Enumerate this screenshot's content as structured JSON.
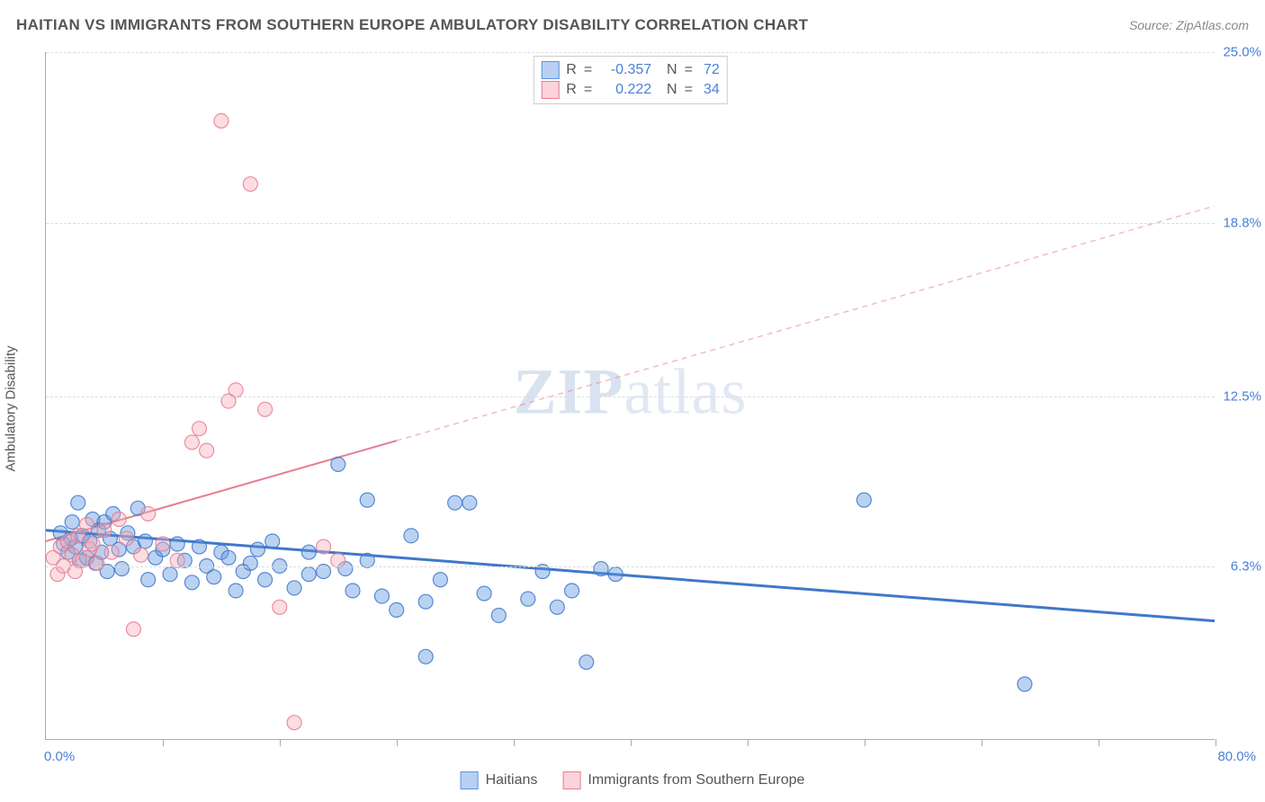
{
  "title": "HAITIAN VS IMMIGRANTS FROM SOUTHERN EUROPE AMBULATORY DISABILITY CORRELATION CHART",
  "source_prefix": "Source: ",
  "source_name": "ZipAtlas.com",
  "ylabel": "Ambulatory Disability",
  "watermark": {
    "bold": "ZIP",
    "rest": "atlas"
  },
  "chart": {
    "type": "scatter",
    "xlim": [
      0,
      80
    ],
    "ylim": [
      0,
      25
    ],
    "x_origin_label": "0.0%",
    "x_max_label": "80.0%",
    "yticks": [
      {
        "value": 6.3,
        "label": "6.3%"
      },
      {
        "value": 12.5,
        "label": "12.5%"
      },
      {
        "value": 18.8,
        "label": "18.8%"
      },
      {
        "value": 25.0,
        "label": "25.0%"
      }
    ],
    "xticks": [
      8,
      16,
      24,
      32,
      40,
      48,
      56,
      64,
      72,
      80
    ],
    "background_color": "#ffffff",
    "grid_color": "#dddddd",
    "axis_color": "#aaaaaa",
    "tick_label_color": "#4a80d8",
    "marker_radius": 8,
    "marker_fill_opacity": 0.42,
    "marker_stroke_opacity": 0.85,
    "marker_stroke_width": 1.2,
    "series": [
      {
        "name": "Haitians",
        "color": "#5b93e0",
        "stroke": "#3f78c9",
        "R": "-0.357",
        "N": "72",
        "trend": {
          "x1": 0,
          "y1": 7.6,
          "x2": 80,
          "y2": 4.3,
          "width": 3,
          "dash": "none"
        },
        "points": [
          [
            1,
            7.5
          ],
          [
            1.2,
            7.1
          ],
          [
            1.5,
            6.8
          ],
          [
            1.7,
            7.3
          ],
          [
            1.8,
            7.9
          ],
          [
            2,
            7.0
          ],
          [
            2.2,
            8.6
          ],
          [
            2.3,
            6.5
          ],
          [
            2.5,
            7.4
          ],
          [
            2.8,
            6.6
          ],
          [
            3,
            7.2
          ],
          [
            3.2,
            8.0
          ],
          [
            3.4,
            6.4
          ],
          [
            3.6,
            7.6
          ],
          [
            3.8,
            6.8
          ],
          [
            4,
            7.9
          ],
          [
            4.2,
            6.1
          ],
          [
            4.4,
            7.3
          ],
          [
            4.6,
            8.2
          ],
          [
            5,
            6.9
          ],
          [
            5.2,
            6.2
          ],
          [
            5.6,
            7.5
          ],
          [
            6,
            7.0
          ],
          [
            6.3,
            8.4
          ],
          [
            6.8,
            7.2
          ],
          [
            7,
            5.8
          ],
          [
            7.5,
            6.6
          ],
          [
            8,
            6.9
          ],
          [
            8.5,
            6.0
          ],
          [
            9,
            7.1
          ],
          [
            9.5,
            6.5
          ],
          [
            10,
            5.7
          ],
          [
            10.5,
            7.0
          ],
          [
            11,
            6.3
          ],
          [
            11.5,
            5.9
          ],
          [
            12,
            6.8
          ],
          [
            12.5,
            6.6
          ],
          [
            13,
            5.4
          ],
          [
            13.5,
            6.1
          ],
          [
            14,
            6.4
          ],
          [
            14.5,
            6.9
          ],
          [
            15,
            5.8
          ],
          [
            15.5,
            7.2
          ],
          [
            16,
            6.3
          ],
          [
            17,
            5.5
          ],
          [
            18,
            6.8
          ],
          [
            19,
            6.1
          ],
          [
            20,
            10.0
          ],
          [
            20.5,
            6.2
          ],
          [
            21,
            5.4
          ],
          [
            22,
            8.7
          ],
          [
            23,
            5.2
          ],
          [
            24,
            4.7
          ],
          [
            25,
            7.4
          ],
          [
            26,
            5.0
          ],
          [
            27,
            5.8
          ],
          [
            28,
            8.6
          ],
          [
            29,
            8.6
          ],
          [
            30,
            5.3
          ],
          [
            31,
            4.5
          ],
          [
            33,
            5.1
          ],
          [
            34,
            6.1
          ],
          [
            35,
            4.8
          ],
          [
            36,
            5.4
          ],
          [
            37,
            2.8
          ],
          [
            38,
            6.2
          ],
          [
            39,
            6.0
          ],
          [
            56,
            8.7
          ],
          [
            67,
            2.0
          ],
          [
            26,
            3.0
          ],
          [
            18,
            6.0
          ],
          [
            22,
            6.5
          ]
        ]
      },
      {
        "name": "Immigrants from Southern Europe",
        "color": "#f5aeb9",
        "stroke": "#e77d92",
        "R": "0.222",
        "N": "34",
        "trend": {
          "x1": 0,
          "y1": 7.2,
          "x2": 80,
          "y2": 19.4,
          "width": 2,
          "dash": "none",
          "dash_after_x": 24,
          "dash_pattern": "6 5"
        },
        "points": [
          [
            0.5,
            6.6
          ],
          [
            0.8,
            6.0
          ],
          [
            1,
            7.0
          ],
          [
            1.2,
            6.3
          ],
          [
            1.5,
            7.2
          ],
          [
            1.8,
            6.7
          ],
          [
            2,
            6.1
          ],
          [
            2.2,
            7.4
          ],
          [
            2.5,
            6.5
          ],
          [
            2.8,
            7.8
          ],
          [
            3,
            6.9
          ],
          [
            3.2,
            7.1
          ],
          [
            3.5,
            6.4
          ],
          [
            4,
            7.6
          ],
          [
            4.5,
            6.8
          ],
          [
            5,
            8.0
          ],
          [
            5.5,
            7.3
          ],
          [
            6,
            4.0
          ],
          [
            6.5,
            6.7
          ],
          [
            7,
            8.2
          ],
          [
            8,
            7.1
          ],
          [
            9,
            6.5
          ],
          [
            10,
            10.8
          ],
          [
            10.5,
            11.3
          ],
          [
            11,
            10.5
          ],
          [
            12,
            22.5
          ],
          [
            12.5,
            12.3
          ],
          [
            13,
            12.7
          ],
          [
            14,
            20.2
          ],
          [
            15,
            12.0
          ],
          [
            16,
            4.8
          ],
          [
            17,
            0.6
          ],
          [
            19,
            7.0
          ],
          [
            20,
            6.5
          ]
        ]
      }
    ]
  },
  "bottom_legend": [
    {
      "label": "Haitians",
      "fill": "#b7d0f2",
      "stroke": "#5b93e0"
    },
    {
      "label": "Immigrants from Southern Europe",
      "fill": "#fbd3da",
      "stroke": "#e77d92"
    }
  ],
  "stats_legend_swatches": [
    {
      "fill": "#b7d0f2",
      "stroke": "#5b93e0"
    },
    {
      "fill": "#fbd3da",
      "stroke": "#e77d92"
    }
  ]
}
